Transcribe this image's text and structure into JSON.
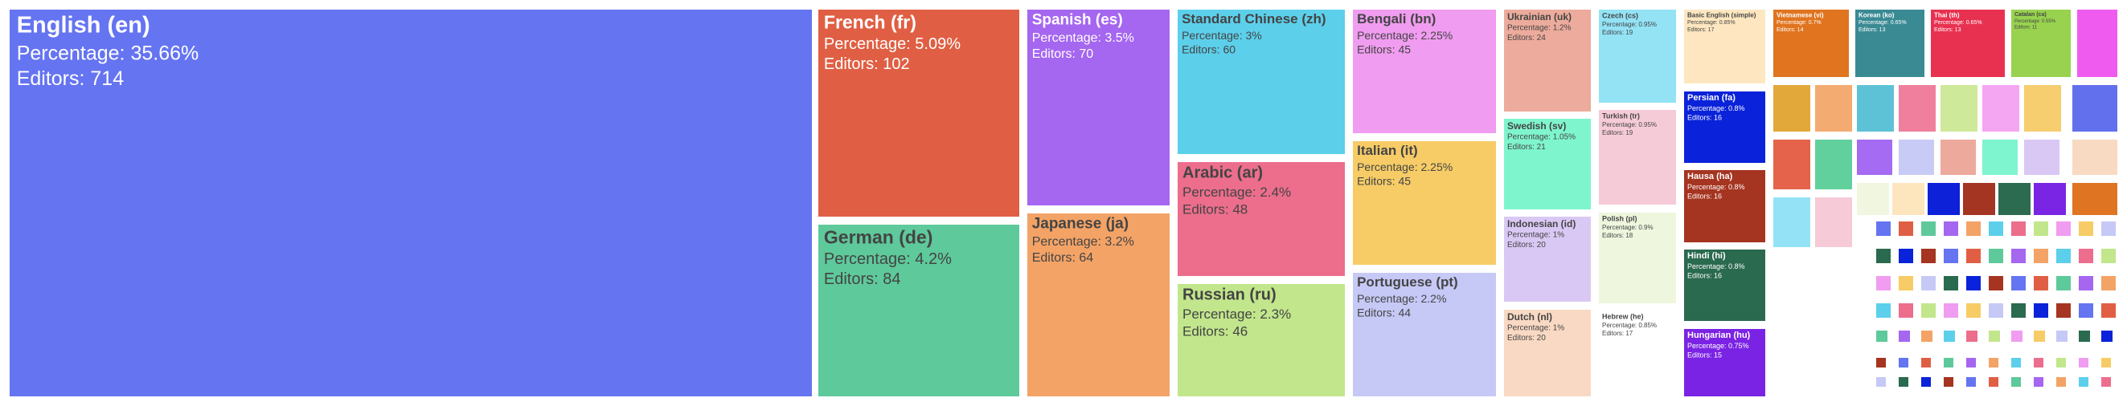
{
  "chart_data": {
    "type": "treemap",
    "title": "",
    "value_label": "Percentage",
    "secondary_label": "Editors",
    "items": [
      {
        "name": "English (en)",
        "percentage": "35.66%",
        "editors": 714,
        "color": "#6574f1"
      },
      {
        "name": "French (fr)",
        "percentage": "5.09%",
        "editors": 102,
        "color": "#e05f44"
      },
      {
        "name": "German (de)",
        "percentage": "4.2%",
        "editors": 84,
        "color": "#5ec99b"
      },
      {
        "name": "Spanish (es)",
        "percentage": "3.5%",
        "editors": 70,
        "color": "#a566f0"
      },
      {
        "name": "Japanese (ja)",
        "percentage": "3.2%",
        "editors": 64,
        "color": "#f3a366"
      },
      {
        "name": "Standard Chinese (zh)",
        "percentage": "3%",
        "editors": 60,
        "color": "#5ccfeb"
      },
      {
        "name": "Arabic (ar)",
        "percentage": "2.4%",
        "editors": 48,
        "color": "#ec6e8c"
      },
      {
        "name": "Russian (ru)",
        "percentage": "2.3%",
        "editors": 46,
        "color": "#c2e68c"
      },
      {
        "name": "Bengali (bn)",
        "percentage": "2.25%",
        "editors": 45,
        "color": "#f09cf0"
      },
      {
        "name": "Italian (it)",
        "percentage": "2.25%",
        "editors": 45,
        "color": "#f7cc66"
      },
      {
        "name": "Portuguese (pt)",
        "percentage": "2.2%",
        "editors": 44,
        "color": "#c6c9f6"
      },
      {
        "name": "Ukrainian (uk)",
        "percentage": "1.2%",
        "editors": 24,
        "color": "#ecab9c"
      },
      {
        "name": "Swedish (sv)",
        "percentage": "1.05%",
        "editors": 21,
        "color": "#7ff5cd"
      },
      {
        "name": "Indonesian (id)",
        "percentage": "1%",
        "editors": 20,
        "color": "#dac8f4"
      },
      {
        "name": "Dutch (nl)",
        "percentage": "1%",
        "editors": 20,
        "color": "#f9d9c3"
      },
      {
        "name": "Czech (cs)",
        "percentage": "0.95%",
        "editors": 19,
        "color": "#93e3f5"
      },
      {
        "name": "Turkish (tr)",
        "percentage": "0.95%",
        "editors": 19,
        "color": "#f6cbd8"
      },
      {
        "name": "Polish (pl)",
        "percentage": "0.9%",
        "editors": 18,
        "color": "#eef6de"
      },
      {
        "name": "Hebrew (he)",
        "percentage": "0.85%",
        "editors": 17,
        "color": "#ffffff"
      },
      {
        "name": "Basic English (simple)",
        "percentage": "0.85%",
        "editors": 17,
        "color": "#fde6c0"
      },
      {
        "name": "Persian (fa)",
        "percentage": "0.8%",
        "editors": 16,
        "color": "#0a22d9"
      },
      {
        "name": "Hausa (ha)",
        "percentage": "0.8%",
        "editors": 16,
        "color": "#a53420"
      },
      {
        "name": "Hindi (hi)",
        "percentage": "0.8%",
        "editors": 16,
        "color": "#2a6a4f"
      },
      {
        "name": "Hungarian (hu)",
        "percentage": "0.75%",
        "editors": 15,
        "color": "#7b23e4"
      },
      {
        "name": "Vietnamese (vi)",
        "percentage": "0.7%",
        "editors": 14,
        "color": "#e0741f"
      },
      {
        "name": "Korean (ko)",
        "percentage": "0.65%",
        "editors": 13,
        "color": "#3a8a94"
      },
      {
        "name": "Thai (th)",
        "percentage": "0.65%",
        "editors": 13,
        "color": "#e83150"
      },
      {
        "name": "Catalan (ca)",
        "percentage": "0.55%",
        "editors": 11,
        "color": "#98d24f"
      },
      {
        "name": "",
        "percentage": "",
        "editors": "",
        "color": "#f05bef"
      },
      {
        "name": "",
        "percentage": "",
        "editors": "",
        "color": "#e2a83a"
      },
      {
        "name": "",
        "percentage": "",
        "editors": "",
        "color": "#f3ab72"
      },
      {
        "name": "",
        "percentage": "",
        "editors": "",
        "color": "#5ec2d6"
      },
      {
        "name": "",
        "percentage": "",
        "editors": "",
        "color": "#ef7f9d"
      },
      {
        "name": "",
        "percentage": "",
        "editors": "",
        "color": "#cfe99a"
      },
      {
        "name": "",
        "percentage": "",
        "editors": "",
        "color": "#f5a6f3"
      },
      {
        "name": "",
        "percentage": "",
        "editors": "",
        "color": "#f6cd6f"
      },
      {
        "name": "",
        "percentage": "",
        "editors": "",
        "color": "#6270ee"
      },
      {
        "name": "",
        "percentage": "",
        "editors": "",
        "color": "#e4634a"
      },
      {
        "name": "",
        "percentage": "",
        "editors": "",
        "color": "#62d09d"
      },
      {
        "name": "",
        "percentage": "",
        "editors": "",
        "color": "#a56bf2"
      },
      {
        "name": "",
        "percentage": "",
        "editors": "",
        "color": "#c8cbf6"
      },
      {
        "name": "",
        "percentage": "",
        "editors": "",
        "color": "#eda99c"
      },
      {
        "name": "",
        "percentage": "",
        "editors": "",
        "color": "#7ef4cf"
      },
      {
        "name": "",
        "percentage": "",
        "editors": "",
        "color": "#d9c7f4"
      },
      {
        "name": "",
        "percentage": "",
        "editors": "",
        "color": "#f8dac2"
      },
      {
        "name": "",
        "percentage": "",
        "editors": "",
        "color": "#94e2f5"
      },
      {
        "name": "",
        "percentage": "",
        "editors": "",
        "color": "#f6cad6"
      },
      {
        "name": "",
        "percentage": "",
        "editors": "",
        "color": "#f0f6df"
      },
      {
        "name": "",
        "percentage": "",
        "editors": "",
        "color": "#fde5be"
      },
      {
        "name": "",
        "percentage": "",
        "editors": "",
        "color": "#0d21d8"
      },
      {
        "name": "",
        "percentage": "",
        "editors": "",
        "color": "#a43522"
      },
      {
        "name": "",
        "percentage": "",
        "editors": "",
        "color": "#2c6b4f"
      },
      {
        "name": "",
        "percentage": "",
        "editors": "",
        "color": "#7a25e3"
      },
      {
        "name": "",
        "percentage": "",
        "editors": "",
        "color": "#df7522"
      }
    ]
  }
}
